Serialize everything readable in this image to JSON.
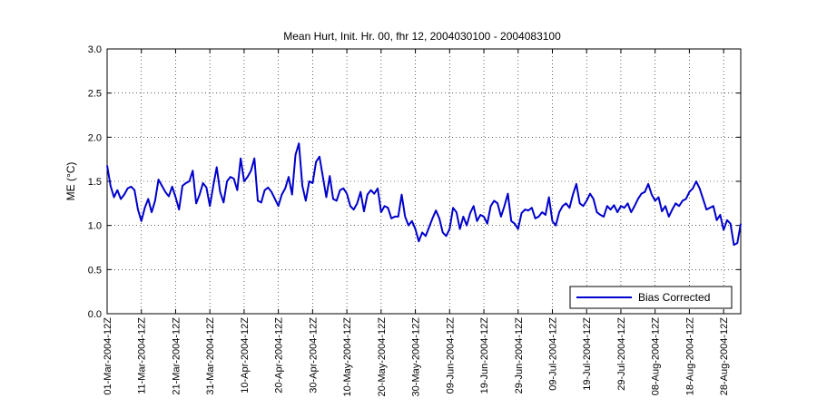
{
  "chart_data": {
    "type": "line",
    "title": "Mean Hurt, Init. Hr. 00, fhr 12, 2004030100 - 2004083100",
    "ylabel": "ME (°C)",
    "xlabel": "",
    "ylim": [
      0,
      3
    ],
    "yticks": [
      "0.0",
      "0.5",
      "1.0",
      "1.5",
      "2.0",
      "2.5",
      "3.0"
    ],
    "xticks": [
      "01-Mar-2004-12Z",
      "11-Mar-2004-12Z",
      "21-Mar-2004-12Z",
      "31-Mar-2004-12Z",
      "10-Apr-2004-12Z",
      "20-Apr-2004-12Z",
      "30-Apr-2004-12Z",
      "10-May-2004-12Z",
      "20-May-2004-12Z",
      "30-May-2004-12Z",
      "09-Jun-2004-12Z",
      "19-Jun-2004-12Z",
      "29-Jun-2004-12Z",
      "09-Jul-2004-12Z",
      "19-Jul-2004-12Z",
      "29-Jul-2004-12Z",
      "08-Aug-2004-12Z",
      "18-Aug-2004-12Z",
      "28-Aug-2004-12Z"
    ],
    "x_start": "01-Mar-2004-12Z",
    "grid": true,
    "legend_position": "bottom-right",
    "series": [
      {
        "name": "Bias Corrected",
        "color": "#0000cc",
        "values": [
          1.68,
          1.45,
          1.32,
          1.4,
          1.3,
          1.35,
          1.42,
          1.44,
          1.4,
          1.18,
          1.05,
          1.2,
          1.3,
          1.15,
          1.28,
          1.52,
          1.45,
          1.38,
          1.33,
          1.44,
          1.32,
          1.18,
          1.45,
          1.48,
          1.5,
          1.62,
          1.25,
          1.35,
          1.48,
          1.43,
          1.22,
          1.45,
          1.66,
          1.38,
          1.26,
          1.5,
          1.55,
          1.53,
          1.4,
          1.76,
          1.5,
          1.55,
          1.62,
          1.76,
          1.28,
          1.26,
          1.4,
          1.43,
          1.38,
          1.3,
          1.22,
          1.35,
          1.42,
          1.55,
          1.35,
          1.8,
          1.93,
          1.45,
          1.28,
          1.5,
          1.48,
          1.72,
          1.78,
          1.55,
          1.32,
          1.56,
          1.3,
          1.28,
          1.4,
          1.42,
          1.36,
          1.22,
          1.18,
          1.25,
          1.38,
          1.16,
          1.35,
          1.4,
          1.36,
          1.42,
          1.15,
          1.22,
          1.2,
          1.08,
          1.1,
          1.1,
          1.35,
          1.1,
          1.0,
          1.05,
          0.96,
          0.82,
          0.92,
          0.88,
          0.98,
          1.08,
          1.17,
          1.08,
          0.92,
          0.88,
          0.96,
          1.2,
          1.15,
          0.96,
          1.1,
          1.0,
          1.14,
          1.22,
          1.05,
          1.12,
          1.1,
          1.02,
          1.22,
          1.28,
          1.25,
          1.1,
          1.22,
          1.36,
          1.05,
          1.02,
          0.96,
          1.14,
          1.18,
          1.17,
          1.2,
          1.08,
          1.1,
          1.15,
          1.12,
          1.32,
          1.05,
          1.0,
          1.15,
          1.22,
          1.25,
          1.2,
          1.35,
          1.47,
          1.25,
          1.22,
          1.28,
          1.36,
          1.3,
          1.15,
          1.12,
          1.1,
          1.22,
          1.18,
          1.23,
          1.15,
          1.22,
          1.2,
          1.25,
          1.15,
          1.22,
          1.3,
          1.36,
          1.38,
          1.47,
          1.35,
          1.28,
          1.32,
          1.16,
          1.22,
          1.1,
          1.18,
          1.25,
          1.22,
          1.28,
          1.3,
          1.38,
          1.42,
          1.5,
          1.42,
          1.3,
          1.18,
          1.2,
          1.22,
          1.06,
          1.12,
          0.95,
          1.06,
          1.02,
          0.78,
          0.8,
          1.02
        ]
      }
    ]
  }
}
